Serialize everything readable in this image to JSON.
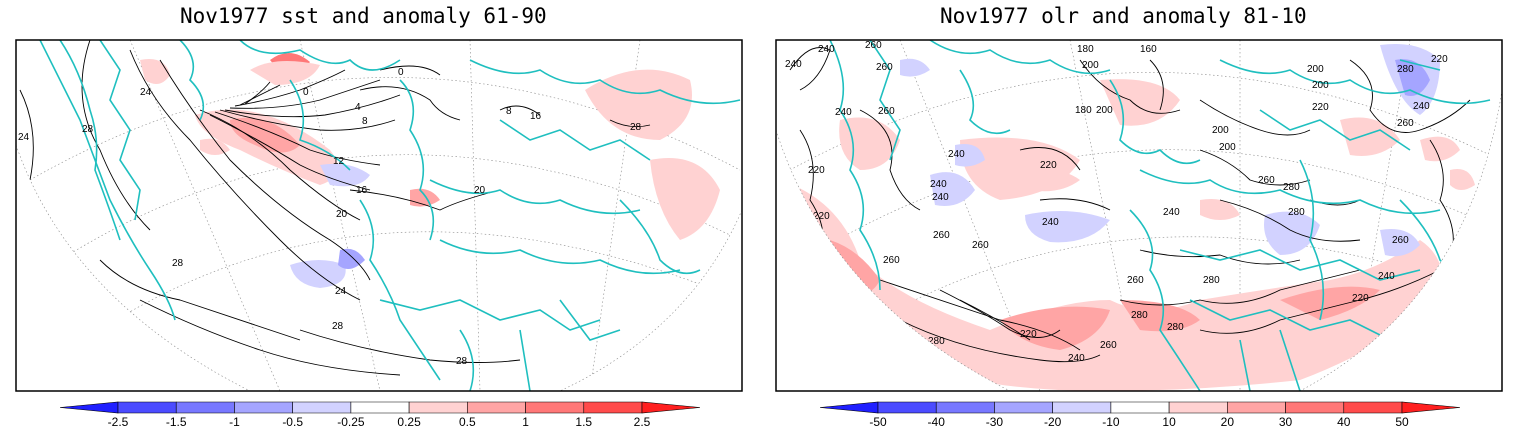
{
  "panels": [
    {
      "title": "Nov1977 sst and anomaly 61-90",
      "contour_labels": [
        "24",
        "24",
        "28",
        "28",
        "28",
        "28",
        "24",
        "20",
        "16",
        "12",
        "8",
        "4",
        "0",
        "0",
        "20",
        "16",
        "8",
        "28"
      ],
      "colorbar": {
        "ticks": [
          "-2.5",
          "-1.5",
          "-1",
          "-0.5",
          "-0.25",
          "0.25",
          "0.5",
          "1",
          "1.5",
          "2.5"
        ],
        "colors": [
          "#1f1fff",
          "#4b4bff",
          "#7878ff",
          "#a5a5ff",
          "#d2d2ff",
          "#ffffff",
          "#ffd2d2",
          "#ffa5a5",
          "#ff7878",
          "#ff4b4b",
          "#ff1f1f"
        ]
      }
    },
    {
      "title": "Nov1977 olr and anomaly 81-10",
      "contour_labels": [
        "240",
        "260",
        "180",
        "160",
        "200",
        "240",
        "260",
        "280",
        "200",
        "220",
        "240",
        "260",
        "180",
        "200",
        "200",
        "240",
        "220",
        "260",
        "220",
        "240",
        "240",
        "220",
        "240",
        "280",
        "260",
        "240",
        "200",
        "200",
        "260",
        "260",
        "240",
        "280",
        "260",
        "280",
        "260",
        "220",
        "220",
        "280",
        "280",
        "240",
        "220",
        "240",
        "260",
        "280",
        "260"
      ],
      "colorbar": {
        "ticks": [
          "-50",
          "-40",
          "-30",
          "-20",
          "-10",
          "10",
          "20",
          "30",
          "40",
          "50"
        ],
        "colors": [
          "#1f1fff",
          "#4b4bff",
          "#7878ff",
          "#a5a5ff",
          "#d2d2ff",
          "#ffffff",
          "#ffd2d2",
          "#ffa5a5",
          "#ff7878",
          "#ff4b4b",
          "#ff1f1f"
        ]
      }
    }
  ],
  "colors": {
    "coast": "#1fbfbf",
    "contour": "#000000",
    "frame": "#000000"
  }
}
